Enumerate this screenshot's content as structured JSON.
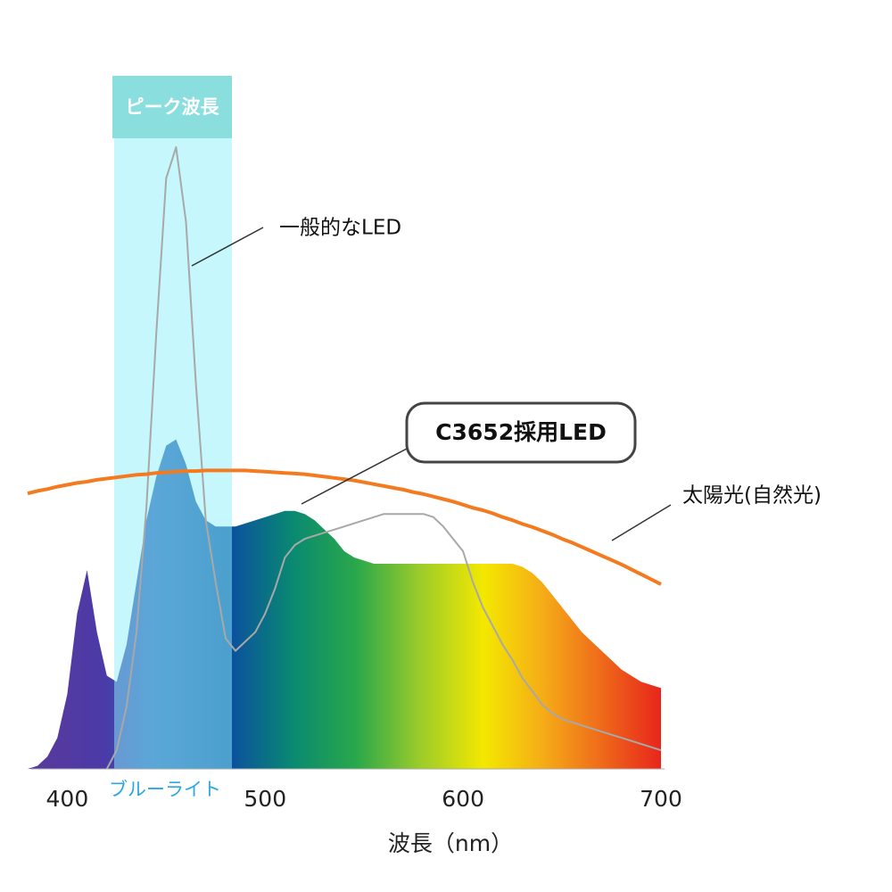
{
  "chart_data": {
    "type": "line",
    "x": [
      380,
      385,
      390,
      395,
      400,
      405,
      410,
      415,
      420,
      425,
      430,
      435,
      440,
      445,
      450,
      455,
      460,
      465,
      470,
      475,
      480,
      485,
      490,
      495,
      500,
      505,
      510,
      515,
      520,
      525,
      530,
      535,
      540,
      545,
      550,
      555,
      560,
      565,
      570,
      575,
      580,
      585,
      590,
      595,
      600,
      605,
      610,
      615,
      620,
      625,
      630,
      635,
      640,
      645,
      650,
      655,
      660,
      665,
      670,
      675,
      680,
      685,
      690,
      695,
      700
    ],
    "series": [
      {
        "name": "C3652採用LED",
        "area": true,
        "values": [
          0,
          0.5,
          2,
          5,
          12,
          25,
          32,
          22,
          15,
          14,
          20,
          30,
          40,
          47,
          52,
          53,
          49,
          43,
          40,
          39,
          39,
          39,
          39.5,
          40,
          40.5,
          41,
          41.5,
          41.5,
          41,
          40,
          38.5,
          37,
          35,
          34,
          33.5,
          33,
          33,
          33,
          33,
          33,
          33,
          33,
          33,
          33,
          33,
          33,
          33,
          33,
          33,
          33,
          32.5,
          31.5,
          30,
          28,
          26,
          24,
          22,
          20.5,
          19,
          17.5,
          16,
          15,
          14,
          13.5,
          13
        ]
      },
      {
        "name": "一般的なLED",
        "color": "#a8a8a8",
        "values": [
          null,
          null,
          null,
          null,
          null,
          null,
          null,
          null,
          0,
          3,
          10,
          22,
          42,
          70,
          95,
          100,
          88,
          62,
          40,
          30,
          21,
          19,
          20.5,
          22,
          25,
          29,
          34,
          36,
          37,
          37.5,
          38,
          38.5,
          39,
          39.5,
          40,
          40.5,
          41,
          41,
          41,
          41,
          41,
          40.5,
          39,
          37,
          35,
          30,
          26,
          23,
          20,
          17.5,
          14.6,
          12.5,
          10.3,
          9,
          8,
          7.5,
          7,
          6.5,
          6,
          5.5,
          5,
          4.5,
          4,
          3.5,
          3
        ]
      },
      {
        "name": "太陽光(自然光)",
        "color": "#f47a20",
        "values": [
          44.3,
          44.7,
          45.0,
          45.4,
          45.7,
          46.0,
          46.2,
          46.5,
          46.7,
          46.9,
          47.1,
          47.3,
          47.4,
          47.6,
          47.7,
          47.8,
          47.9,
          47.9,
          48.0,
          48.0,
          48.0,
          48.0,
          48.0,
          47.9,
          47.8,
          47.7,
          47.6,
          47.5,
          47.4,
          47.2,
          47.0,
          46.8,
          46.6,
          46.4,
          46.1,
          45.8,
          45.5,
          45.2,
          44.9,
          44.5,
          44.2,
          43.8,
          43.4,
          43.0,
          42.5,
          42.0,
          41.6,
          41.1,
          40.5,
          40.0,
          39.4,
          38.9,
          38.3,
          37.7,
          37.0,
          36.4,
          35.7,
          35.0,
          34.3,
          33.6,
          32.9,
          32.1,
          31.3,
          30.5,
          29.7
        ]
      }
    ],
    "xlim": [
      380,
      700
    ],
    "xticks": [
      400,
      500,
      600,
      700
    ],
    "ylim": [
      0,
      100
    ],
    "xlabel": "波長（nm）",
    "annotations": [
      "ピーク波長",
      "ブルーライト"
    ]
  }
}
